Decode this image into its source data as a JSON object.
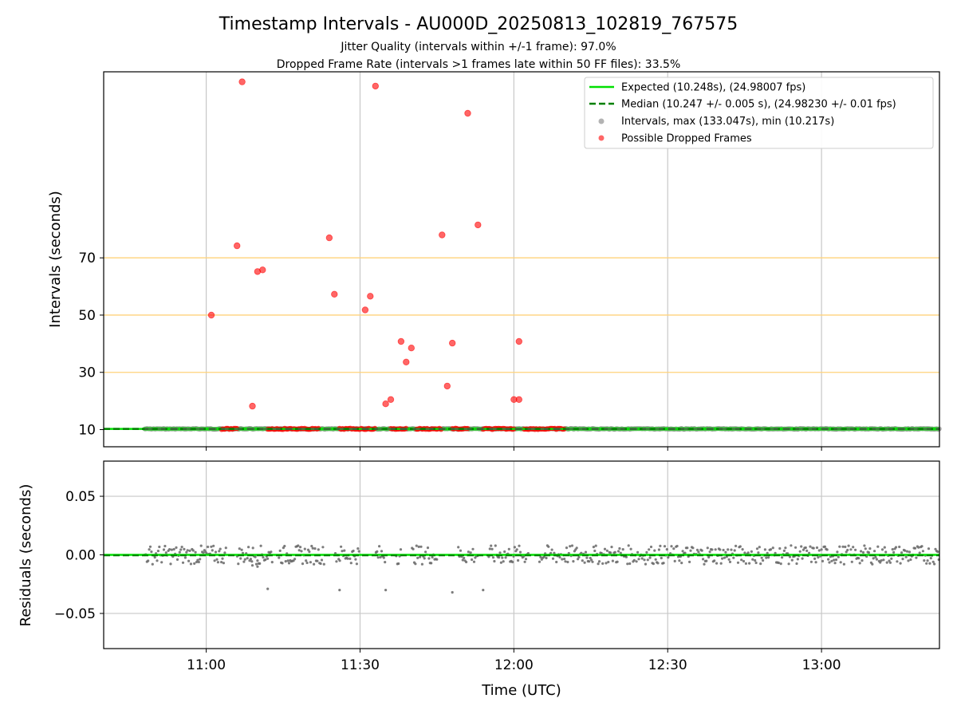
{
  "chart_data": {
    "type": "scatter",
    "title": "Timestamp Intervals - AU000D_20250813_102819_767575",
    "subtitles": [
      "Jitter Quality (intervals within +/-1 frame): 97.0%",
      "Dropped Frame Rate (intervals >1 frames late within 50 FF files): 33.5%"
    ],
    "xlabel": "Time (UTC)",
    "x_ticks": [
      "11:00",
      "11:30",
      "12:00",
      "12:30",
      "13:00"
    ],
    "x_range": [
      "10:40",
      "13:23"
    ],
    "top_panel": {
      "ylabel": "Intervals (seconds)",
      "yticks": [
        10,
        30,
        50,
        70
      ],
      "ylim": [
        4,
        135
      ],
      "reference_lines": [
        30,
        50,
        70
      ],
      "grid": "vertical",
      "legend_position": "upper right",
      "expected_interval": 10.248,
      "median_interval": 10.247,
      "legend": {
        "expected": "Expected (10.248s), (24.98007 fps)",
        "median": "Median (10.247 +/- 0.005 s), (24.98230 +/- 0.01 fps)",
        "intervals": "Intervals, max (133.047s), min (10.217s)",
        "dropped": "Possible Dropped Frames"
      },
      "dropped_frames": [
        {
          "x": "11:01",
          "y": 50.0
        },
        {
          "x": "11:06",
          "y": 74.2
        },
        {
          "x": "11:07",
          "y": 131.5
        },
        {
          "x": "11:09",
          "y": 18.2
        },
        {
          "x": "11:10",
          "y": 65.2
        },
        {
          "x": "11:11",
          "y": 65.8
        },
        {
          "x": "11:24",
          "y": 77.0
        },
        {
          "x": "11:25",
          "y": 57.3
        },
        {
          "x": "11:31",
          "y": 51.8
        },
        {
          "x": "11:32",
          "y": 56.6
        },
        {
          "x": "11:33",
          "y": 130.0
        },
        {
          "x": "11:35",
          "y": 19.0
        },
        {
          "x": "11:36",
          "y": 20.5
        },
        {
          "x": "11:38",
          "y": 40.8
        },
        {
          "x": "11:39",
          "y": 33.6
        },
        {
          "x": "11:40",
          "y": 38.5
        },
        {
          "x": "11:46",
          "y": 78.0
        },
        {
          "x": "11:47",
          "y": 25.2
        },
        {
          "x": "11:48",
          "y": 40.2
        },
        {
          "x": "11:51",
          "y": 120.5
        },
        {
          "x": "11:53",
          "y": 81.5
        },
        {
          "x": "12:00",
          "y": 20.5
        },
        {
          "x": "12:01",
          "y": 20.5
        },
        {
          "x": "12:01",
          "y": 40.8
        }
      ],
      "dropped_baseline_segments": [
        [
          "11:03",
          "11:06"
        ],
        [
          "11:12",
          "11:22"
        ],
        [
          "11:26",
          "11:33"
        ],
        [
          "11:36",
          "11:39"
        ],
        [
          "11:41",
          "11:46"
        ],
        [
          "11:48",
          "11:51"
        ],
        [
          "11:54",
          "12:00"
        ],
        [
          "12:02",
          "12:10"
        ]
      ]
    },
    "bottom_panel": {
      "ylabel": "Residuals (seconds)",
      "yticks": [
        "0.05",
        "0.00",
        "−0.05"
      ],
      "ylim": [
        -0.08,
        0.08
      ],
      "grid": "both",
      "outliers": [
        {
          "x": "11:09",
          "y": -0.009
        },
        {
          "x": "11:10",
          "y": -0.01
        },
        {
          "x": "11:12",
          "y": -0.029
        },
        {
          "x": "11:26",
          "y": -0.03
        },
        {
          "x": "11:35",
          "y": -0.03
        },
        {
          "x": "11:48",
          "y": -0.032
        },
        {
          "x": "11:54",
          "y": -0.03
        }
      ]
    },
    "colors": {
      "expected": "#00e000",
      "median": "#008000",
      "intervals": "#808080",
      "dropped": "#ff0000",
      "reference": "#ffd27a",
      "grid": "#c8c8c8"
    }
  }
}
